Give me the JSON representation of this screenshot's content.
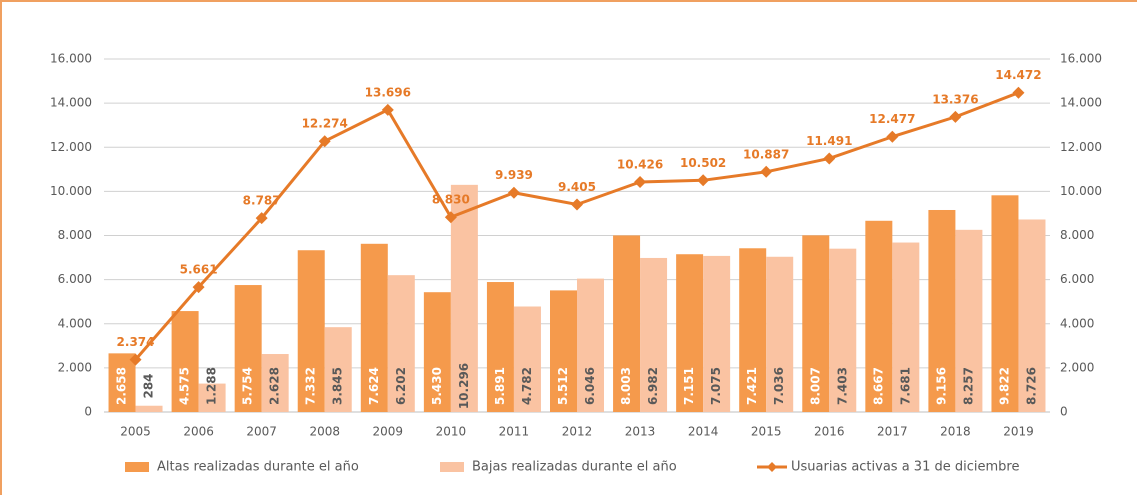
{
  "chart_data": {
    "type": "bar",
    "categories": [
      "2005",
      "2006",
      "2007",
      "2008",
      "2009",
      "2010",
      "2011",
      "2012",
      "2013",
      "2014",
      "2015",
      "2016",
      "2017",
      "2018",
      "2019"
    ],
    "series": [
      {
        "name": "Altas realizadas durante el año",
        "color": "#f59a4c",
        "type": "bar",
        "values": [
          2658,
          4575,
          5754,
          7332,
          7624,
          5430,
          5891,
          5512,
          8003,
          7151,
          7421,
          8007,
          8667,
          9156,
          9822
        ],
        "value_labels": [
          "2.658",
          "4.575",
          "5.754",
          "7.332",
          "7.624",
          "5.430",
          "5.891",
          "5.512",
          "8.003",
          "7.151",
          "7.421",
          "8.007",
          "8.667",
          "9.156",
          "9.822"
        ]
      },
      {
        "name": "Bajas realizadas durante el año",
        "color": "#fac3a2",
        "type": "bar",
        "values": [
          284,
          1288,
          2628,
          3845,
          6202,
          10296,
          4782,
          6046,
          6982,
          7075,
          7036,
          7403,
          7681,
          8257,
          8726
        ],
        "value_labels": [
          "284",
          "1.288",
          "2.628",
          "3.845",
          "6.202",
          "10.296",
          "4.782",
          "6.046",
          "6.982",
          "7.075",
          "7.036",
          "7.403",
          "7.681",
          "8.257",
          "8.726"
        ]
      },
      {
        "name": "Usuarias activas a 31 de diciembre",
        "color": "#e67a28",
        "type": "line",
        "axis": "y2",
        "values": [
          2374,
          5661,
          8787,
          12274,
          13696,
          8830,
          9939,
          9405,
          10426,
          10502,
          10887,
          11491,
          12477,
          13376,
          14472
        ],
        "value_labels": [
          "2.374",
          "5.661",
          "8.787",
          "12.274",
          "13.696",
          "8.830",
          "9.939",
          "9.405",
          "10.426",
          "10.502",
          "10.887",
          "11.491",
          "12.477",
          "13.376",
          "14.472"
        ]
      }
    ],
    "ylim": [
      0,
      16000
    ],
    "yticks": [
      0,
      {
        "value": 2000,
        "label": "2.000"
      },
      {
        "value": 4000,
        "label": "4.000"
      },
      {
        "value": 6000,
        "label": "6.000"
      },
      {
        "value": 8000,
        "label": "8.000"
      },
      {
        "value": 10000,
        "label": "10.000"
      },
      {
        "value": 12000,
        "label": "12.000"
      },
      {
        "value": 14000,
        "label": "14.000"
      },
      {
        "value": 16000,
        "label": "16.000"
      }
    ],
    "y2lim": [
      0,
      16000
    ],
    "y2ticks": [
      0,
      {
        "value": 2000,
        "label": "2.000"
      },
      {
        "value": 4000,
        "label": "4.000"
      },
      {
        "value": 6000,
        "label": "6.000"
      },
      {
        "value": 8000,
        "label": "8.000"
      },
      {
        "value": 10000,
        "label": "10.000"
      },
      {
        "value": 12000,
        "label": "12.000"
      },
      {
        "value": 14000,
        "label": "14.000"
      },
      {
        "value": 16000,
        "label": "16.000"
      }
    ],
    "grid": true,
    "legend": "bottom"
  }
}
